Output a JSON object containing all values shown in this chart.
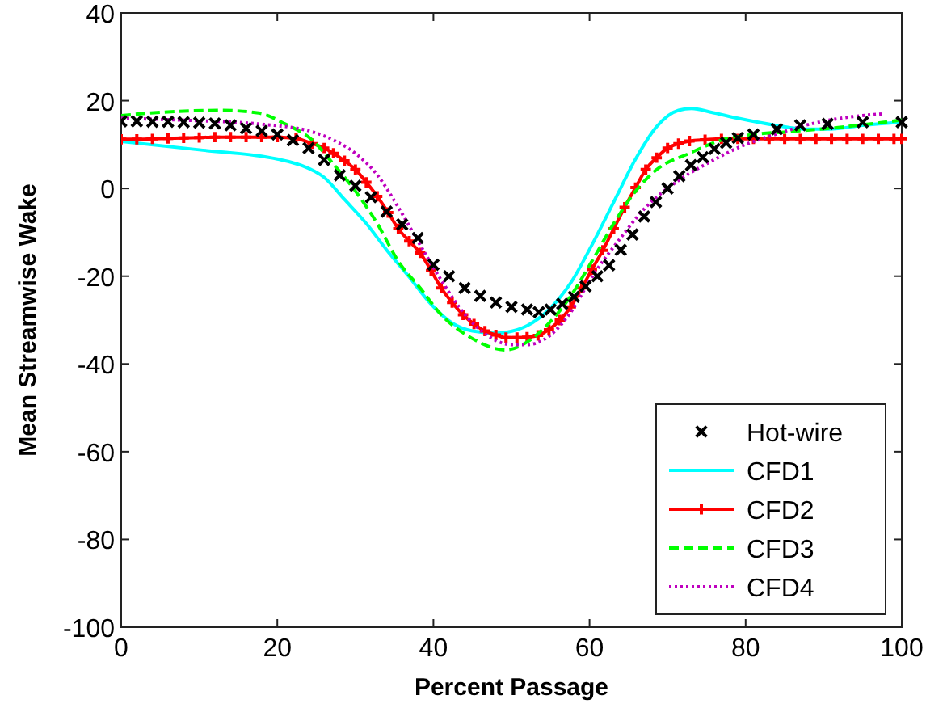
{
  "chart_data": {
    "type": "line",
    "xlabel": "Percent Passage",
    "ylabel": "Mean Streamwise Wake",
    "xlim": [
      0,
      100
    ],
    "ylim": [
      -100,
      40
    ],
    "xticks": [
      0,
      20,
      40,
      60,
      80,
      100
    ],
    "yticks": [
      -100,
      -80,
      -60,
      -40,
      -20,
      0,
      20,
      40
    ],
    "grid": false,
    "legend": "bottom right",
    "series": [
      {
        "name": "Hot-wire",
        "type": "scatter",
        "marker": "cross",
        "color": "#000000",
        "x": [
          0,
          2,
          4,
          6,
          8,
          10,
          12,
          14,
          16,
          18,
          20,
          22,
          24,
          26,
          28,
          30,
          32,
          34,
          36,
          38,
          40,
          42,
          44,
          46,
          48,
          50,
          52,
          53.5,
          55,
          56.5,
          58,
          59.5,
          61,
          62.5,
          64,
          65.5,
          67,
          68.5,
          70,
          71.5,
          73,
          74.5,
          76,
          77.5,
          79,
          81,
          84,
          87,
          90.5,
          95,
          100
        ],
        "values": [
          15.3,
          15.3,
          15.2,
          15.2,
          15.1,
          15,
          14.8,
          14.4,
          13.7,
          13.1,
          12.3,
          11,
          9.2,
          6.5,
          3,
          0.6,
          -2,
          -5.3,
          -8.2,
          -11.3,
          -17.4,
          -20,
          -22.7,
          -24.5,
          -26,
          -27,
          -27.6,
          -28.2,
          -27.6,
          -26.3,
          -24.7,
          -22.3,
          -20,
          -17.5,
          -14,
          -10.5,
          -6.4,
          -3.1,
          0,
          2.8,
          5.3,
          7.1,
          9,
          10.4,
          11.5,
          12.3,
          13.5,
          14.4,
          14.7,
          15.1,
          15.1
        ]
      },
      {
        "name": "CFD1",
        "color": "#00ffff",
        "line_style": "solid",
        "marker": "none",
        "x": [
          0,
          10,
          20,
          23,
          26,
          28.6,
          31.4,
          34,
          36.9,
          39.7,
          42.4,
          45,
          48,
          49.3,
          52,
          54.8,
          57.6,
          60.3,
          63.1,
          65.9,
          68.6,
          71.4,
          73.1,
          75.5,
          79,
          83.8,
          87.9,
          90.7,
          95,
          100
        ],
        "values": [
          10.7,
          8.8,
          6.7,
          5.3,
          2.5,
          -2.5,
          -8,
          -14,
          -20.2,
          -26.4,
          -30.7,
          -32.5,
          -33,
          -32.8,
          -31.3,
          -27.6,
          -21.5,
          -12.9,
          -3.1,
          6.7,
          14.1,
          17.8,
          18.2,
          17.4,
          16,
          14.4,
          13.5,
          13.5,
          14.4,
          15.1
        ]
      },
      {
        "name": "CFD2",
        "color": "#ff0000",
        "line_style": "solid",
        "marker": "cross",
        "x": [
          0,
          2,
          4,
          6,
          8,
          10,
          12,
          14,
          16,
          18,
          20,
          22.4,
          24.5,
          26,
          27.2,
          28.6,
          30,
          31.4,
          32.8,
          34.2,
          35.5,
          36.9,
          38.3,
          39.7,
          41,
          42.4,
          43.8,
          45.2,
          46.6,
          48,
          49.3,
          50.7,
          52,
          53.4,
          54.8,
          56.2,
          57.6,
          59,
          60.3,
          61.7,
          63.1,
          64.5,
          65.9,
          67.2,
          68.6,
          70,
          71.4,
          72.8,
          74.8,
          76.9,
          79,
          81,
          83,
          85,
          87,
          89,
          91,
          93,
          95,
          97,
          99,
          100
        ],
        "values": [
          11.2,
          11.2,
          11.3,
          11.4,
          11.5,
          11.6,
          11.7,
          11.7,
          11.7,
          11.7,
          11.7,
          11.4,
          10.2,
          9.2,
          8,
          6.3,
          4.3,
          1.4,
          -1.8,
          -5.5,
          -9.2,
          -12,
          -14.7,
          -18.7,
          -22.7,
          -26,
          -28.8,
          -30.9,
          -32.5,
          -33.4,
          -34,
          -34,
          -33.9,
          -33.5,
          -32.2,
          -30,
          -27,
          -22.7,
          -18.5,
          -14.1,
          -9.2,
          -4.3,
          0.2,
          4.3,
          7,
          9.2,
          10.2,
          10.8,
          11.1,
          11.3,
          11.3,
          11.3,
          11.3,
          11.3,
          11.3,
          11.3,
          11.3,
          11.3,
          11.3,
          11.3,
          11.3,
          11.3
        ]
      },
      {
        "name": "CFD3",
        "color": "#00ff00",
        "line_style": "dashed",
        "marker": "none",
        "x": [
          0,
          3.8,
          12.8,
          17.6,
          21,
          24.5,
          27.2,
          30,
          32.8,
          35.5,
          38.3,
          41,
          44.5,
          49.3,
          52,
          54.8,
          57.6,
          60.3,
          63.1,
          65.9,
          68.6,
          72.8,
          76.9,
          81,
          85.2,
          90.7,
          100
        ],
        "values": [
          16.6,
          17.2,
          17.8,
          17.2,
          14.7,
          11,
          5.5,
          -0.6,
          -8,
          -16.6,
          -22.7,
          -28.8,
          -33.7,
          -36.8,
          -35,
          -30.7,
          -24.5,
          -16.6,
          -8,
          -0.6,
          4.3,
          8,
          11,
          12.3,
          12.9,
          13.7,
          15.6
        ]
      },
      {
        "name": "CFD4",
        "color": "#bf00bf",
        "line_style": "dotted",
        "marker": "none",
        "x": [
          0,
          7.2,
          17.6,
          24.5,
          27.2,
          30,
          32.8,
          35.5,
          38.3,
          41,
          43.8,
          46.6,
          50,
          52,
          54.8,
          57.6,
          60.3,
          63.8,
          67.2,
          71.4,
          75.5,
          79.7,
          83.8,
          87.9,
          93.4,
          97.6
        ],
        "values": [
          16,
          15.6,
          14.7,
          12.9,
          11,
          8,
          3.1,
          -4.3,
          -12.9,
          -20.9,
          -28.2,
          -33.1,
          -35.6,
          -35.6,
          -33.7,
          -28.2,
          -20.2,
          -11.7,
          -4.3,
          1.8,
          6.1,
          9.8,
          12.3,
          14.5,
          16.3,
          17
        ]
      }
    ]
  }
}
